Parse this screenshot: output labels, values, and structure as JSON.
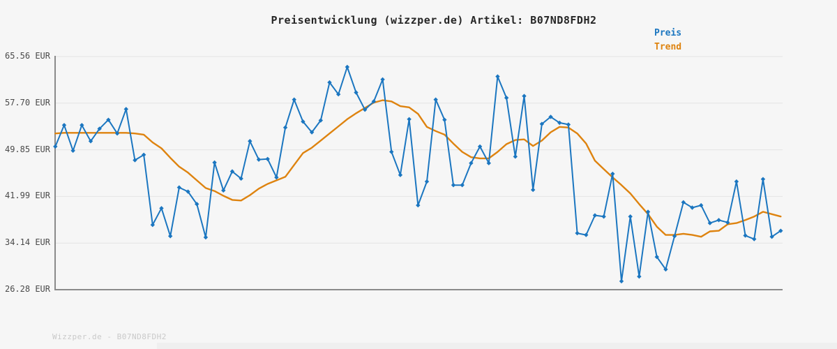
{
  "title": "Preisentwicklung (wizzper.de) Artikel: B07ND8FDH2",
  "legend": {
    "items": [
      {
        "label": "Preis",
        "color": "#1b76c0"
      },
      {
        "label": "Trend",
        "color": "#de830f"
      }
    ]
  },
  "watermark": "Wizzper.de - B07ND8FDH2",
  "colors": {
    "preis_line": "#1b76c0",
    "trend_line": "#de830f",
    "gridline": "#e4e4e4",
    "axis": "#8a8a8a",
    "tick_text": "#4a4a4a"
  },
  "chart_data": {
    "type": "line",
    "title": "Preisentwicklung (wizzper.de) Artikel: B07ND8FDH2",
    "xlabel": "",
    "ylabel": "",
    "ylim": [
      26.28,
      65.56
    ],
    "ytick_values": [
      65.56,
      57.7,
      49.85,
      41.99,
      34.14,
      26.28
    ],
    "ytick_labels": [
      "65.56 EUR",
      "57.70 EUR",
      "49.85 EUR",
      "41.99 EUR",
      "34.14 EUR",
      "26.28 EUR"
    ],
    "grid": "horizontal",
    "legend_position": "top-right",
    "x_unit": "time-index (no x tick labels shown)",
    "series": [
      {
        "name": "Preis",
        "color": "#1b76c0",
        "marker": "diamond",
        "values": [
          50.4,
          54.0,
          49.7,
          54.0,
          51.3,
          53.4,
          54.9,
          52.6,
          56.7,
          48.1,
          49.0,
          37.2,
          40.0,
          35.3,
          43.5,
          42.8,
          40.7,
          35.1,
          47.7,
          43.0,
          46.2,
          45.0,
          51.3,
          48.2,
          48.3,
          45.2,
          53.6,
          58.3,
          54.6,
          52.8,
          54.8,
          61.2,
          59.2,
          63.8,
          59.5,
          56.6,
          58.0,
          61.7,
          49.5,
          45.6,
          55.0,
          40.5,
          44.5,
          58.3,
          54.9,
          43.9,
          43.9,
          47.6,
          50.4,
          47.6,
          62.2,
          58.6,
          48.7,
          58.9,
          43.1,
          54.2,
          55.4,
          54.4,
          54.1,
          35.8,
          35.5,
          38.8,
          38.6,
          45.8,
          27.7,
          38.6,
          28.5,
          39.4,
          31.8,
          29.7,
          35.3,
          41.0,
          40.1,
          40.5,
          37.5,
          38.0,
          37.6,
          44.5,
          35.4,
          34.8,
          44.9,
          35.2,
          36.2
        ]
      },
      {
        "name": "Trend",
        "color": "#de830f",
        "marker": "none",
        "values": [
          52.6,
          52.7,
          52.7,
          52.7,
          52.7,
          52.7,
          52.7,
          52.7,
          52.7,
          52.6,
          52.4,
          51.1,
          50.1,
          48.5,
          47.0,
          46.0,
          44.7,
          43.4,
          42.9,
          42.1,
          41.4,
          41.3,
          42.2,
          43.3,
          44.1,
          44.7,
          45.3,
          47.3,
          49.3,
          50.2,
          51.4,
          52.6,
          53.8,
          55.0,
          56.0,
          56.9,
          57.8,
          58.2,
          58.0,
          57.2,
          57.0,
          55.9,
          53.7,
          53.0,
          52.4,
          50.9,
          49.5,
          48.6,
          48.4,
          48.4,
          49.5,
          50.8,
          51.5,
          51.6,
          50.5,
          51.4,
          52.8,
          53.7,
          53.6,
          52.6,
          50.9,
          48.0,
          46.6,
          45.2,
          43.9,
          42.5,
          40.7,
          39.0,
          36.9,
          35.5,
          35.5,
          35.7,
          35.5,
          35.2,
          36.1,
          36.2,
          37.3,
          37.5,
          38.0,
          38.6,
          39.4,
          39.0,
          38.6
        ]
      }
    ]
  }
}
